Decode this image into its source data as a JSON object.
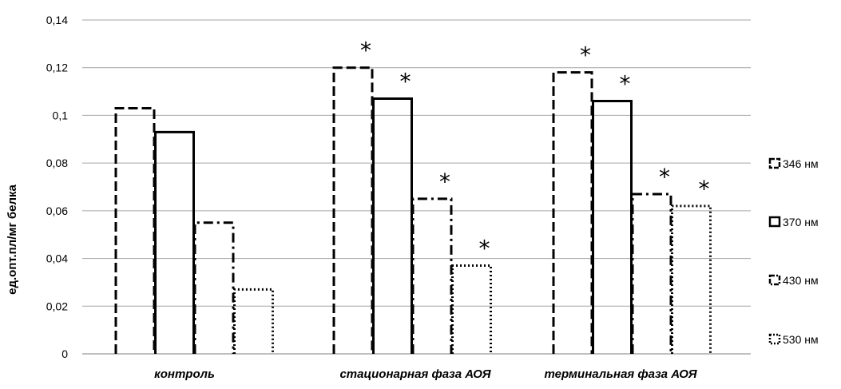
{
  "chart_data": {
    "type": "bar",
    "title": "",
    "xlabel": "",
    "ylabel": "ед.опт.пл/мг белка",
    "ylim": [
      0,
      0.14
    ],
    "yticks": [
      "0",
      "0,02",
      "0,04",
      "0,06",
      "0,08",
      "0,1",
      "0,12",
      "0,14"
    ],
    "ytick_values": [
      0,
      0.02,
      0.04,
      0.06,
      0.08,
      0.1,
      0.12,
      0.14
    ],
    "grid": true,
    "legend_position": "right",
    "categories": [
      "контроль",
      "стационарная фаза АОЯ",
      "терминальная фаза АОЯ"
    ],
    "series": [
      {
        "name": "346 нм",
        "values": [
          0.103,
          0.12,
          0.118
        ],
        "significant": [
          false,
          true,
          true
        ],
        "line_style": "dashed",
        "color": "#000000"
      },
      {
        "name": "370 нм",
        "values": [
          0.093,
          0.107,
          0.106
        ],
        "significant": [
          false,
          true,
          true
        ],
        "line_style": "solid",
        "color": "#000000"
      },
      {
        "name": "430 нм",
        "values": [
          0.055,
          0.065,
          0.067
        ],
        "significant": [
          false,
          true,
          true
        ],
        "line_style": "dash-dot",
        "color": "#000000"
      },
      {
        "name": "530 нм",
        "values": [
          0.027,
          0.037,
          0.062
        ],
        "significant": [
          false,
          true,
          true
        ],
        "line_style": "dotted",
        "color": "#000000"
      }
    ],
    "significance_marker": "*",
    "gridline_color": "#a6a6a6"
  }
}
